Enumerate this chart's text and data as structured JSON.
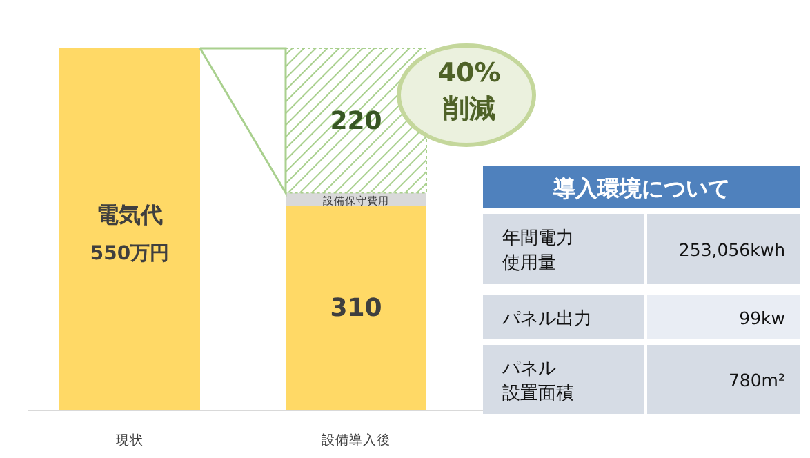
{
  "chart_data": [
    {
      "type": "bar",
      "stacked": true,
      "legend": false,
      "categories": [
        "現状",
        "設備導入後"
      ],
      "series": [
        {
          "name": "電気代",
          "color": "#ffd966",
          "values": [
            550,
            310
          ],
          "value_labels": [
            "550万円",
            "310"
          ]
        },
        {
          "name": "設備保守費用",
          "color": "#d9d9d9",
          "values": [
            null,
            20
          ]
        },
        {
          "color": "#a9d08e",
          "values": [
            null,
            220
          ],
          "value_labels": [
            null,
            "220"
          ]
        }
      ],
      "annotations": [
        "40%\n削減"
      ]
    },
    {
      "type": "other",
      "title": "導入環境について",
      "annotations": [
        "年間電力使用量",
        "253,056kwh",
        "パネル出力",
        "99kw",
        "パネル設置面積",
        "780m²"
      ]
    }
  ]
}
